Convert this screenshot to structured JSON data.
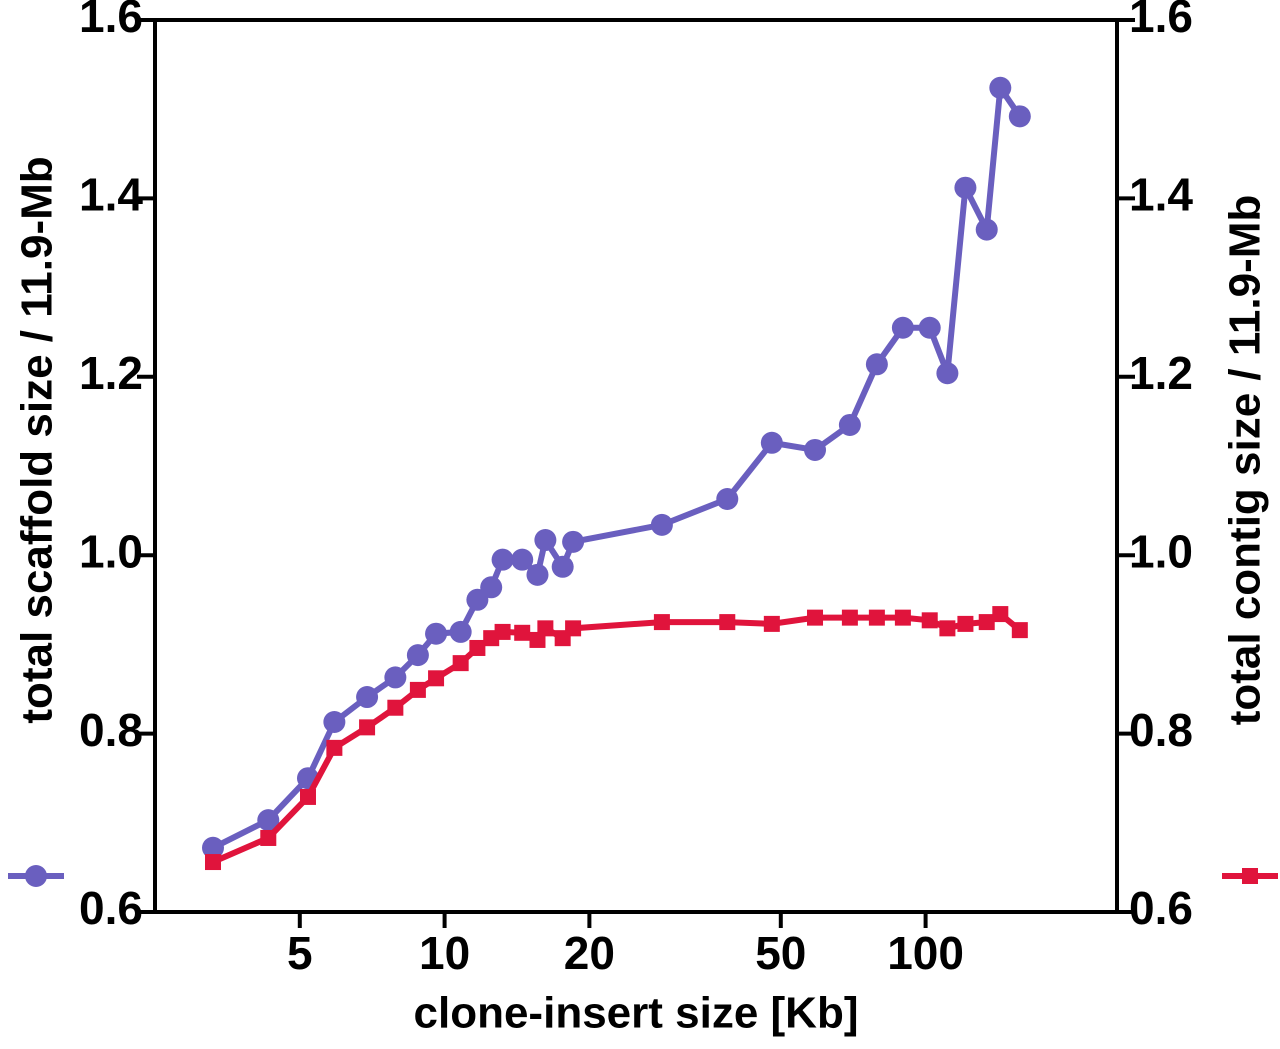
{
  "chart_data": {
    "type": "line",
    "xlabel": "clone-insert size [Kb]",
    "ylabel": "total scaffold size / 11.9-Mb",
    "y2label": "total contig size / 11.9-Mb",
    "xscale": "log",
    "xlim": [
      2.5,
      250
    ],
    "xticks": [
      5,
      10,
      20,
      50,
      100
    ],
    "ylim": [
      0.6,
      1.6
    ],
    "yticks": [
      0.6,
      0.8,
      {
        "value": 1.0,
        "label": "1.0"
      },
      1.2,
      1.4,
      1.6
    ],
    "y2lim": [
      0.6,
      1.6
    ],
    "y2ticks": [
      0.6,
      0.8,
      {
        "value": 1.0,
        "label": "1.0"
      },
      1.2,
      1.4,
      1.6
    ],
    "x": [
      3.3,
      4.3,
      5.2,
      5.9,
      6.9,
      7.9,
      8.8,
      9.6,
      10.8,
      11.7,
      12.5,
      13.2,
      14.5,
      15.6,
      16.2,
      17.6,
      18.5,
      28.3,
      38.7,
      47.9,
      58.9,
      69.6,
      79.2,
      89.7,
      102,
      111,
      121,
      134,
      143,
      157
    ],
    "series": [
      {
        "color": "#6a5fbf",
        "marker": "circle",
        "values": [
          0.672,
          0.703,
          0.75,
          0.813,
          0.841,
          0.863,
          0.888,
          0.912,
          0.914,
          0.95,
          0.964,
          0.995,
          0.995,
          0.978,
          1.017,
          0.987,
          1.015,
          1.034,
          1.063,
          1.126,
          1.118,
          1.146,
          1.214,
          1.255,
          1.255,
          1.204,
          1.412,
          1.365,
          1.524,
          1.492
        ]
      },
      {
        "color": "#e0143c",
        "marker": "square",
        "axis": "y2",
        "values": [
          0.656,
          0.683,
          0.729,
          0.784,
          0.807,
          0.829,
          0.849,
          0.862,
          0.879,
          0.896,
          0.907,
          0.914,
          0.913,
          0.905,
          0.918,
          0.907,
          0.918,
          0.925,
          0.925,
          0.923,
          0.93,
          0.93,
          0.93,
          0.93,
          0.927,
          0.918,
          0.923,
          0.925,
          0.934,
          0.916
        ]
      }
    ]
  }
}
